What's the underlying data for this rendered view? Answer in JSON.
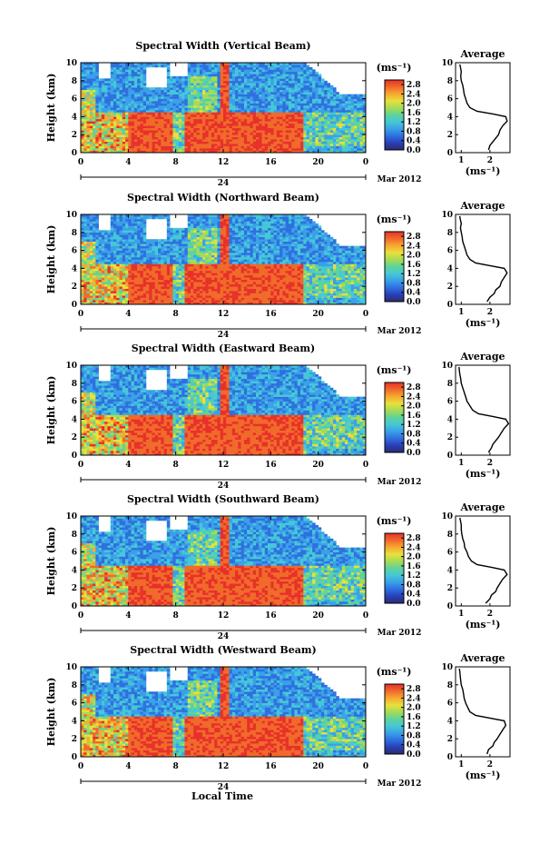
{
  "figure": {
    "x_axis_title": "Local Time",
    "date_label": "Mar 2012",
    "day_label": "24",
    "height_label": "Height (km)",
    "colorbar_unit": "(ms⁻¹)",
    "profile_title": "Average",
    "profile_unit": "(ms⁻¹)"
  },
  "colors": {
    "scale": [
      "#2b2b6e",
      "#2a3fb8",
      "#2f6fe0",
      "#3aa0e8",
      "#45c8d6",
      "#5fd39a",
      "#a6db55",
      "#e8e03c",
      "#f7a830",
      "#f06a2a",
      "#e8302a"
    ],
    "frame": "#000000"
  },
  "chart_data": [
    {
      "type": "heatmap",
      "title": "Spectral Width (Vertical Beam)",
      "x_ticks": [
        "0",
        "4",
        "8",
        "12",
        "16",
        "20",
        "0"
      ],
      "xlim": [
        0,
        24
      ],
      "y_ticks": [
        "0",
        "2",
        "4",
        "6",
        "8",
        "10"
      ],
      "ylim": [
        0,
        10
      ],
      "ylabel": "Height (km)",
      "colorbar_ticks": [
        "0.0",
        "0.4",
        "0.8",
        "1.2",
        "1.6",
        "2.0",
        "2.4",
        "2.8"
      ],
      "colorbar_range": [
        0,
        3.0
      ],
      "profile": {
        "title": "Average",
        "x_ticks": [
          "1",
          "2"
        ],
        "xlim": [
          0.8,
          2.7
        ],
        "ylim": [
          0,
          10
        ],
        "y_ticks": [
          "0",
          "2",
          "4",
          "6",
          "8",
          "10"
        ],
        "height_km": [
          0.3,
          0.8,
          1.2,
          1.6,
          2.0,
          2.5,
          3.0,
          3.5,
          4.0,
          4.3,
          4.6,
          5.0,
          5.5,
          6.0,
          6.5,
          7.0,
          7.5,
          8.0,
          8.5,
          9.0,
          9.5,
          9.8
        ],
        "width_ms": [
          1.95,
          2.0,
          2.1,
          2.2,
          2.3,
          2.35,
          2.45,
          2.6,
          2.55,
          2.1,
          1.55,
          1.3,
          1.2,
          1.15,
          1.1,
          1.08,
          1.05,
          1.0,
          0.98,
          1.0,
          0.97,
          0.95
        ]
      }
    },
    {
      "type": "heatmap",
      "title": "Spectral Width (Northward Beam)",
      "x_ticks": [
        "0",
        "4",
        "8",
        "12",
        "16",
        "20",
        "0"
      ],
      "xlim": [
        0,
        24
      ],
      "y_ticks": [
        "0",
        "2",
        "4",
        "6",
        "8",
        "10"
      ],
      "ylim": [
        0,
        10
      ],
      "ylabel": "Height (km)",
      "colorbar_ticks": [
        "0.0",
        "0.4",
        "0.8",
        "1.2",
        "1.6",
        "2.0",
        "2.4",
        "2.8"
      ],
      "colorbar_range": [
        0,
        3.0
      ],
      "profile": {
        "title": "Average",
        "x_ticks": [
          "1",
          "2"
        ],
        "xlim": [
          0.8,
          2.7
        ],
        "ylim": [
          0,
          10
        ],
        "y_ticks": [
          "0",
          "2",
          "4",
          "6",
          "8",
          "10"
        ],
        "height_km": [
          0.3,
          0.8,
          1.2,
          1.6,
          2.0,
          2.5,
          3.0,
          3.5,
          4.0,
          4.3,
          4.6,
          5.0,
          5.5,
          6.0,
          6.5,
          7.0,
          7.5,
          8.0,
          8.5,
          9.0,
          9.5,
          9.8
        ],
        "width_ms": [
          1.9,
          2.0,
          2.15,
          2.2,
          2.35,
          2.4,
          2.5,
          2.6,
          2.5,
          2.0,
          1.5,
          1.3,
          1.2,
          1.15,
          1.1,
          1.05,
          1.03,
          1.0,
          0.97,
          1.0,
          0.96,
          0.95
        ]
      }
    },
    {
      "type": "heatmap",
      "title": "Spectral Width (Eastward Beam)",
      "x_ticks": [
        "0",
        "4",
        "8",
        "12",
        "16",
        "20",
        "0"
      ],
      "xlim": [
        0,
        24
      ],
      "y_ticks": [
        "0",
        "2",
        "4",
        "6",
        "8",
        "10"
      ],
      "ylim": [
        0,
        10
      ],
      "ylabel": "Height (km)",
      "colorbar_ticks": [
        "0.0",
        "0.4",
        "0.8",
        "1.2",
        "1.6",
        "2.0",
        "2.4",
        "2.8"
      ],
      "colorbar_range": [
        0,
        3.0
      ],
      "profile": {
        "title": "Average",
        "x_ticks": [
          "1",
          "2"
        ],
        "xlim": [
          0.8,
          2.7
        ],
        "ylim": [
          0,
          10
        ],
        "y_ticks": [
          "0",
          "2",
          "4",
          "6",
          "8",
          "10"
        ],
        "height_km": [
          0.3,
          0.8,
          1.2,
          1.6,
          2.0,
          2.5,
          3.0,
          3.5,
          4.0,
          4.3,
          4.6,
          5.0,
          5.5,
          6.0,
          6.5,
          7.0,
          7.5,
          8.0,
          8.5,
          9.0,
          9.5,
          9.8
        ],
        "width_ms": [
          1.95,
          2.05,
          2.1,
          2.2,
          2.3,
          2.4,
          2.5,
          2.65,
          2.55,
          2.1,
          1.6,
          1.4,
          1.3,
          1.2,
          1.15,
          1.1,
          1.05,
          1.0,
          0.98,
          0.95,
          0.93,
          0.92
        ]
      }
    },
    {
      "type": "heatmap",
      "title": "Spectral Width (Southward Beam)",
      "x_ticks": [
        "0",
        "4",
        "8",
        "12",
        "16",
        "20",
        "0"
      ],
      "xlim": [
        0,
        24
      ],
      "y_ticks": [
        "0",
        "2",
        "4",
        "6",
        "8",
        "10"
      ],
      "ylim": [
        0,
        10
      ],
      "ylabel": "Height (km)",
      "colorbar_ticks": [
        "0.0",
        "0.4",
        "0.8",
        "1.2",
        "1.6",
        "2.0",
        "2.4",
        "2.8"
      ],
      "colorbar_range": [
        0,
        3.0
      ],
      "profile": {
        "title": "Average",
        "x_ticks": [
          "1",
          "2"
        ],
        "xlim": [
          0.8,
          2.7
        ],
        "ylim": [
          0,
          10
        ],
        "y_ticks": [
          "0",
          "2",
          "4",
          "6",
          "8",
          "10"
        ],
        "height_km": [
          0.3,
          0.8,
          1.2,
          1.6,
          2.0,
          2.5,
          3.0,
          3.5,
          4.0,
          4.3,
          4.6,
          5.0,
          5.5,
          6.0,
          6.5,
          7.0,
          7.5,
          8.0,
          8.5,
          9.0,
          9.5,
          9.8
        ],
        "width_ms": [
          1.85,
          2.0,
          2.05,
          2.2,
          2.25,
          2.35,
          2.45,
          2.6,
          2.5,
          2.05,
          1.55,
          1.35,
          1.25,
          1.2,
          1.12,
          1.1,
          1.05,
          1.02,
          1.0,
          1.0,
          0.97,
          0.95
        ]
      }
    },
    {
      "type": "heatmap",
      "title": "Spectral Width (Westward Beam)",
      "x_ticks": [
        "0",
        "4",
        "8",
        "12",
        "16",
        "20",
        "0"
      ],
      "xlim": [
        0,
        24
      ],
      "y_ticks": [
        "0",
        "2",
        "4",
        "6",
        "8",
        "10"
      ],
      "ylim": [
        0,
        10
      ],
      "ylabel": "Height (km)",
      "colorbar_ticks": [
        "0.0",
        "0.4",
        "0.8",
        "1.2",
        "1.6",
        "2.0",
        "2.4",
        "2.8"
      ],
      "colorbar_range": [
        0,
        3.0
      ],
      "profile": {
        "title": "Average",
        "x_ticks": [
          "1",
          "2"
        ],
        "xlim": [
          0.8,
          2.7
        ],
        "ylim": [
          0,
          10
        ],
        "y_ticks": [
          "0",
          "2",
          "4",
          "6",
          "8",
          "10"
        ],
        "height_km": [
          0.3,
          0.8,
          1.2,
          1.6,
          2.0,
          2.5,
          3.0,
          3.5,
          4.0,
          4.3,
          4.6,
          5.0,
          5.5,
          6.0,
          6.5,
          7.0,
          7.5,
          8.0,
          8.5,
          9.0,
          9.5,
          9.8
        ],
        "width_ms": [
          1.9,
          1.95,
          2.1,
          2.15,
          2.25,
          2.35,
          2.45,
          2.55,
          2.5,
          2.0,
          1.5,
          1.3,
          1.22,
          1.15,
          1.1,
          1.08,
          1.05,
          1.0,
          0.98,
          0.96,
          0.95,
          0.93
        ]
      }
    }
  ]
}
